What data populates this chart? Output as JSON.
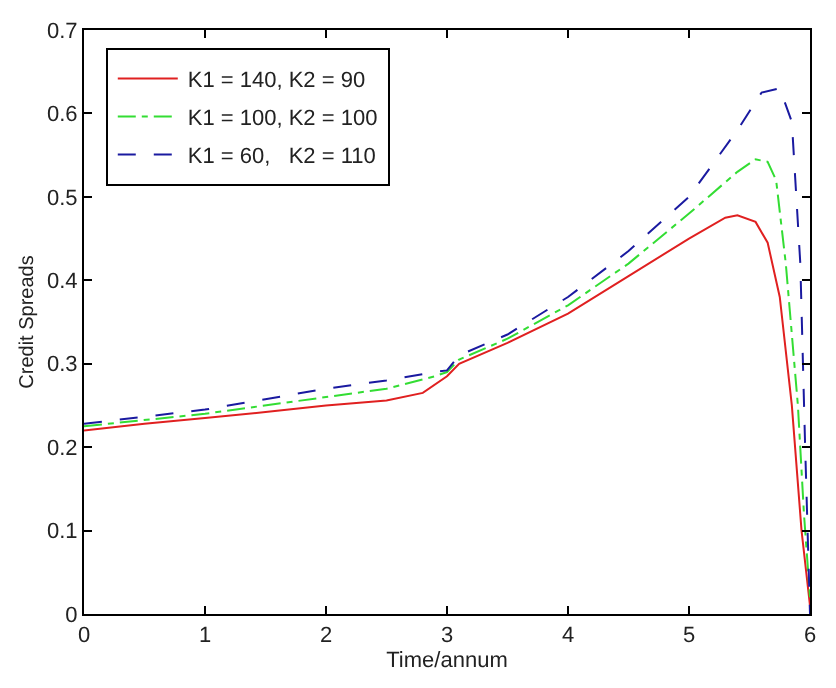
{
  "chart_data": {
    "type": "line",
    "xlabel": "Time/annum",
    "ylabel": "Credit Spreads",
    "xlim": [
      0,
      6
    ],
    "ylim": [
      0,
      0.7
    ],
    "xticks": [
      0,
      1,
      2,
      3,
      4,
      5,
      6
    ],
    "yticks": [
      0,
      0.1,
      0.2,
      0.3,
      0.4,
      0.5,
      0.6,
      0.7
    ],
    "legend": "top left",
    "marker": "none",
    "series": [
      {
        "name": "K1 = 140, K2 = 90",
        "color": "#e02020",
        "line_style": "solid",
        "x": [
          0,
          0.5,
          1,
          1.5,
          2,
          2.5,
          2.8,
          3.0,
          3.1,
          3.5,
          4,
          4.5,
          5,
          5.3,
          5.4,
          5.55,
          5.65,
          5.75,
          5.85,
          5.93,
          6
        ],
        "values": [
          0.22,
          0.228,
          0.235,
          0.242,
          0.25,
          0.256,
          0.265,
          0.285,
          0.3,
          0.325,
          0.36,
          0.405,
          0.45,
          0.475,
          0.478,
          0.47,
          0.445,
          0.38,
          0.25,
          0.1,
          0.01
        ]
      },
      {
        "name": "K1 = 100, K2 = 100",
        "color": "#33dd33",
        "line_style": "dashdot",
        "x": [
          0,
          1,
          2,
          2.5,
          2.9,
          3.0,
          3.1,
          3.5,
          4,
          4.5,
          5,
          5.4,
          5.55,
          5.65,
          5.72,
          5.8,
          5.9,
          5.95,
          6
        ],
        "values": [
          0.225,
          0.24,
          0.26,
          0.27,
          0.285,
          0.29,
          0.305,
          0.33,
          0.37,
          0.42,
          0.48,
          0.53,
          0.545,
          0.542,
          0.52,
          0.42,
          0.25,
          0.12,
          0.02
        ]
      },
      {
        "name": "K1 = 60,   K2 = 110",
        "color": "#1a1aa0",
        "line_style": "dashed",
        "x": [
          0,
          1,
          2,
          2.5,
          2.9,
          3.0,
          3.1,
          3.5,
          4,
          4.5,
          5,
          5.4,
          5.6,
          5.75,
          5.85,
          5.92,
          5.96,
          6
        ],
        "values": [
          0.228,
          0.245,
          0.27,
          0.28,
          0.29,
          0.292,
          0.31,
          0.335,
          0.38,
          0.435,
          0.5,
          0.58,
          0.625,
          0.63,
          0.59,
          0.42,
          0.2,
          0.0
        ]
      }
    ]
  }
}
